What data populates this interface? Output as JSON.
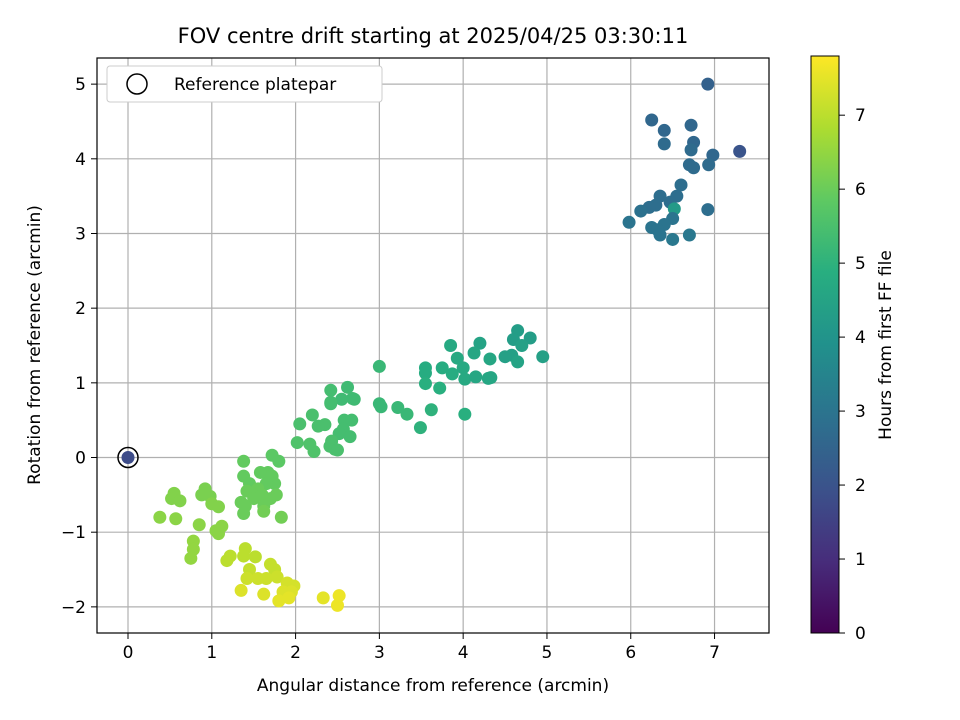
{
  "chart_data": {
    "type": "scatter",
    "title": "FOV centre drift starting at 2025/04/25 03:30:11",
    "xlabel": "Angular distance from reference (arcmin)",
    "ylabel": "Rotation from reference (arcmin)",
    "xlim": [
      -0.37,
      7.65
    ],
    "ylim": [
      -2.35,
      5.35
    ],
    "xticks": [
      0,
      1,
      2,
      3,
      4,
      5,
      6,
      7
    ],
    "yticks": [
      -2,
      -1,
      0,
      1,
      2,
      3,
      4,
      5
    ],
    "xtick_labels": [
      "0",
      "1",
      "2",
      "3",
      "4",
      "5",
      "6",
      "7"
    ],
    "ytick_labels": [
      "−2",
      "−1",
      "0",
      "1",
      "2",
      "3",
      "4",
      "5"
    ],
    "grid": true,
    "legend": {
      "placement": "top-left",
      "entries": [
        "Reference platepar"
      ]
    },
    "reference_point": {
      "x": 0,
      "y": 0,
      "marker": "open-circle"
    },
    "colorbar": {
      "label": "Hours from first FF file",
      "range": [
        0,
        7.8
      ],
      "ticks": [
        0,
        1,
        2,
        3,
        4,
        5,
        6,
        7
      ],
      "tick_labels": [
        "0",
        "1",
        "2",
        "3",
        "4",
        "5",
        "6",
        "7"
      ],
      "colormap": "viridis"
    },
    "points": [
      [
        0,
        0,
        1.8
      ],
      [
        7.3,
        4.1,
        2.0
      ],
      [
        6.92,
        5.0,
        2.4
      ],
      [
        6.25,
        4.52,
        2.6
      ],
      [
        6.4,
        4.38,
        2.6
      ],
      [
        6.72,
        4.45,
        2.6
      ],
      [
        6.75,
        4.22,
        2.6
      ],
      [
        6.72,
        4.12,
        2.7
      ],
      [
        6.4,
        4.2,
        2.7
      ],
      [
        6.98,
        4.05,
        2.6
      ],
      [
        6.7,
        3.92,
        2.7
      ],
      [
        6.75,
        3.88,
        2.7
      ],
      [
        6.93,
        3.92,
        2.7
      ],
      [
        6.6,
        3.65,
        2.8
      ],
      [
        6.55,
        3.5,
        2.8
      ],
      [
        6.35,
        3.5,
        2.8
      ],
      [
        6.47,
        3.42,
        2.8
      ],
      [
        6.3,
        3.38,
        2.8
      ],
      [
        6.22,
        3.35,
        2.8
      ],
      [
        6.12,
        3.3,
        2.9
      ],
      [
        6.52,
        3.33,
        4.2
      ],
      [
        6.92,
        3.32,
        2.8
      ],
      [
        5.98,
        3.15,
        3.0
      ],
      [
        6.5,
        3.2,
        3.0
      ],
      [
        6.4,
        3.12,
        3.0
      ],
      [
        6.25,
        3.08,
        3.0
      ],
      [
        6.32,
        3.05,
        3.0
      ],
      [
        6.35,
        2.98,
        3.0
      ],
      [
        6.5,
        2.92,
        3.1
      ],
      [
        6.7,
        2.98,
        3.1
      ],
      [
        4.65,
        1.7,
        4.3
      ],
      [
        4.8,
        1.6,
        4.3
      ],
      [
        4.6,
        1.58,
        4.3
      ],
      [
        4.7,
        1.5,
        4.4
      ],
      [
        4.95,
        1.35,
        4.4
      ],
      [
        4.58,
        1.37,
        4.4
      ],
      [
        4.5,
        1.35,
        4.4
      ],
      [
        4.65,
        1.28,
        4.5
      ],
      [
        4.2,
        1.53,
        4.5
      ],
      [
        4.13,
        1.4,
        4.6
      ],
      [
        4.32,
        1.32,
        4.6
      ],
      [
        3.85,
        1.5,
        4.7
      ],
      [
        3.93,
        1.33,
        4.7
      ],
      [
        3.75,
        1.2,
        4.8
      ],
      [
        3.55,
        1.2,
        4.8
      ],
      [
        3.55,
        1.13,
        4.8
      ],
      [
        3.87,
        1.12,
        4.8
      ],
      [
        4.0,
        1.2,
        4.7
      ],
      [
        4.02,
        1.05,
        4.7
      ],
      [
        4.15,
        1.08,
        4.6
      ],
      [
        4.3,
        1.06,
        4.6
      ],
      [
        4.33,
        1.07,
        4.6
      ],
      [
        3.72,
        0.93,
        4.9
      ],
      [
        3.55,
        0.99,
        4.9
      ],
      [
        3.62,
        0.64,
        5.0
      ],
      [
        4.02,
        0.58,
        4.9
      ],
      [
        3.49,
        0.4,
        5.0
      ],
      [
        3.0,
        1.22,
        5.2
      ],
      [
        3.22,
        0.67,
        5.2
      ],
      [
        3.33,
        0.58,
        5.2
      ],
      [
        3.0,
        0.72,
        5.2
      ],
      [
        3.02,
        0.68,
        5.2
      ],
      [
        2.62,
        0.94,
        5.3
      ],
      [
        2.68,
        0.79,
        5.3
      ],
      [
        2.7,
        0.78,
        5.3
      ],
      [
        2.55,
        0.78,
        5.3
      ],
      [
        2.42,
        0.9,
        5.4
      ],
      [
        2.42,
        0.72,
        5.4
      ],
      [
        2.42,
        0.74,
        5.4
      ],
      [
        2.2,
        0.57,
        5.5
      ],
      [
        2.05,
        0.45,
        5.5
      ],
      [
        2.35,
        0.44,
        5.5
      ],
      [
        2.27,
        0.42,
        5.5
      ],
      [
        2.58,
        0.5,
        5.4
      ],
      [
        2.67,
        0.5,
        5.4
      ],
      [
        2.57,
        0.38,
        5.4
      ],
      [
        2.52,
        0.32,
        5.4
      ],
      [
        2.65,
        0.28,
        5.4
      ],
      [
        2.43,
        0.22,
        5.5
      ],
      [
        2.41,
        0.15,
        5.5
      ],
      [
        2.47,
        0.11,
        5.5
      ],
      [
        2.17,
        0.18,
        5.6
      ],
      [
        2.02,
        0.2,
        5.6
      ],
      [
        2.22,
        0.08,
        5.6
      ],
      [
        2.5,
        0.1,
        5.5
      ],
      [
        1.72,
        0.03,
        5.8
      ],
      [
        1.8,
        -0.05,
        5.8
      ],
      [
        1.38,
        -0.05,
        5.9
      ],
      [
        1.38,
        -0.25,
        5.9
      ],
      [
        1.67,
        -0.2,
        5.9
      ],
      [
        1.58,
        -0.2,
        5.9
      ],
      [
        1.72,
        -0.25,
        5.9
      ],
      [
        1.75,
        -0.35,
        5.9
      ],
      [
        1.45,
        -0.35,
        5.9
      ],
      [
        1.65,
        -0.35,
        5.9
      ],
      [
        1.55,
        -0.42,
        6.0
      ],
      [
        1.42,
        -0.45,
        6.0
      ],
      [
        1.6,
        -0.5,
        6.0
      ],
      [
        1.77,
        -0.5,
        6.0
      ],
      [
        1.5,
        -0.55,
        6.0
      ],
      [
        1.35,
        -0.6,
        6.0
      ],
      [
        1.7,
        -0.55,
        6.0
      ],
      [
        1.4,
        -0.65,
        6.0
      ],
      [
        1.62,
        -0.65,
        6.0
      ],
      [
        1.62,
        -0.72,
        6.1
      ],
      [
        1.38,
        -0.75,
        6.0
      ],
      [
        1.83,
        -0.8,
        6.1
      ],
      [
        0.92,
        -0.42,
        6.2
      ],
      [
        0.88,
        -0.5,
        6.2
      ],
      [
        0.98,
        -0.52,
        6.2
      ],
      [
        0.55,
        -0.48,
        6.3
      ],
      [
        0.52,
        -0.55,
        6.3
      ],
      [
        0.62,
        -0.58,
        6.3
      ],
      [
        1.0,
        -0.62,
        6.3
      ],
      [
        1.08,
        -0.66,
        6.3
      ],
      [
        0.38,
        -0.8,
        6.4
      ],
      [
        0.57,
        -0.82,
        6.4
      ],
      [
        0.85,
        -0.9,
        6.4
      ],
      [
        1.12,
        -0.92,
        6.4
      ],
      [
        1.05,
        -0.98,
        6.4
      ],
      [
        1.08,
        -1.02,
        6.4
      ],
      [
        0.78,
        -1.12,
        6.5
      ],
      [
        0.78,
        -1.23,
        6.5
      ],
      [
        0.75,
        -1.35,
        6.5
      ],
      [
        1.22,
        -1.32,
        7.0
      ],
      [
        1.18,
        -1.38,
        7.0
      ],
      [
        1.4,
        -1.22,
        7.0
      ],
      [
        1.38,
        -1.32,
        7.0
      ],
      [
        1.52,
        -1.33,
        7.0
      ],
      [
        1.7,
        -1.43,
        7.1
      ],
      [
        1.75,
        -1.5,
        7.1
      ],
      [
        1.45,
        -1.5,
        7.1
      ],
      [
        1.42,
        -1.62,
        7.2
      ],
      [
        1.55,
        -1.62,
        7.2
      ],
      [
        1.65,
        -1.62,
        7.2
      ],
      [
        1.78,
        -1.6,
        7.2
      ],
      [
        1.9,
        -1.68,
        7.3
      ],
      [
        1.98,
        -1.72,
        7.3
      ],
      [
        1.35,
        -1.78,
        7.4
      ],
      [
        1.62,
        -1.83,
        7.4
      ],
      [
        1.85,
        -1.8,
        7.4
      ],
      [
        1.95,
        -1.8,
        7.4
      ],
      [
        1.8,
        -1.92,
        7.5
      ],
      [
        1.92,
        -1.88,
        7.5
      ],
      [
        2.33,
        -1.88,
        7.5
      ],
      [
        2.52,
        -1.85,
        7.6
      ],
      [
        2.5,
        -1.98,
        7.6
      ]
    ]
  }
}
